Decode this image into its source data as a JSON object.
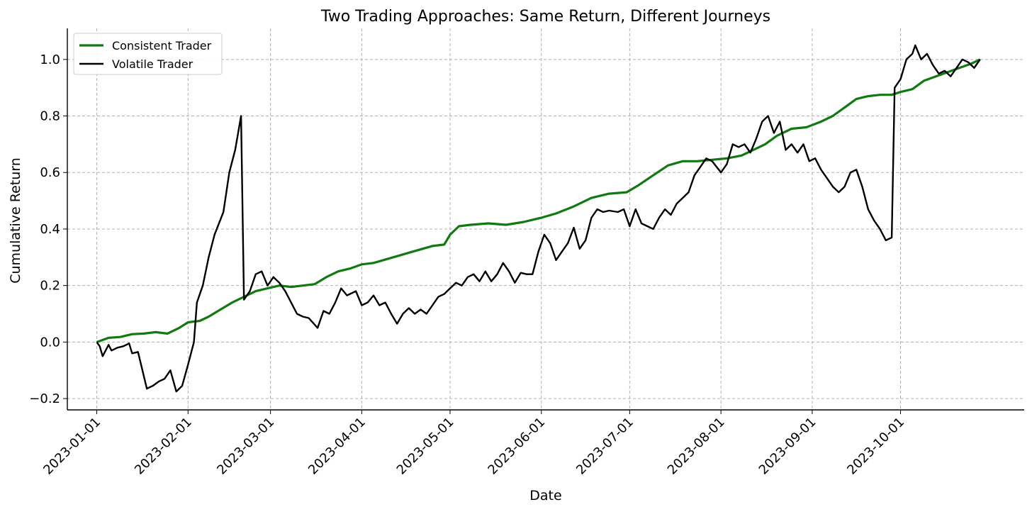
{
  "chart_data": {
    "type": "line",
    "title": "Two Trading Approaches: Same Return, Different Journeys",
    "xlabel": "Date",
    "ylabel": "Cumulative Return",
    "x_ticks": [
      "2023-01-01",
      "2023-02-01",
      "2023-03-01",
      "2023-04-01",
      "2023-05-01",
      "2023-06-01",
      "2023-07-01",
      "2023-08-01",
      "2023-09-01",
      "2023-10-01"
    ],
    "y_ticks": [
      -0.2,
      0.0,
      0.2,
      0.4,
      0.6,
      0.8,
      1.0
    ],
    "y_tick_labels": [
      "−0.2",
      "0.0",
      "0.2",
      "0.4",
      "0.6",
      "0.8",
      "1.0"
    ],
    "ylim": [
      -0.24,
      1.11
    ],
    "xlim": [
      "2022-12-22",
      "2023-11-12"
    ],
    "grid": true,
    "legend_position": "top-left",
    "series": [
      {
        "name": "Consistent Trader",
        "color": "#107a10",
        "points": [
          [
            "2023-01-01",
            0.0
          ],
          [
            "2023-01-05",
            0.015
          ],
          [
            "2023-01-09",
            0.018
          ],
          [
            "2023-01-13",
            0.028
          ],
          [
            "2023-01-17",
            0.03
          ],
          [
            "2023-01-21",
            0.035
          ],
          [
            "2023-01-25",
            0.03
          ],
          [
            "2023-01-29",
            0.05
          ],
          [
            "2023-02-01",
            0.07
          ],
          [
            "2023-02-05",
            0.075
          ],
          [
            "2023-02-08",
            0.09
          ],
          [
            "2023-02-12",
            0.115
          ],
          [
            "2023-02-16",
            0.14
          ],
          [
            "2023-02-20",
            0.16
          ],
          [
            "2023-02-24",
            0.18
          ],
          [
            "2023-02-28",
            0.19
          ],
          [
            "2023-03-04",
            0.2
          ],
          [
            "2023-03-08",
            0.195
          ],
          [
            "2023-03-12",
            0.2
          ],
          [
            "2023-03-16",
            0.205
          ],
          [
            "2023-03-20",
            0.23
          ],
          [
            "2023-03-24",
            0.25
          ],
          [
            "2023-03-28",
            0.26
          ],
          [
            "2023-04-01",
            0.275
          ],
          [
            "2023-04-05",
            0.28
          ],
          [
            "2023-04-10",
            0.295
          ],
          [
            "2023-04-15",
            0.31
          ],
          [
            "2023-04-20",
            0.325
          ],
          [
            "2023-04-25",
            0.34
          ],
          [
            "2023-04-29",
            0.345
          ],
          [
            "2023-05-01",
            0.38
          ],
          [
            "2023-05-04",
            0.41
          ],
          [
            "2023-05-08",
            0.415
          ],
          [
            "2023-05-14",
            0.42
          ],
          [
            "2023-05-20",
            0.415
          ],
          [
            "2023-05-26",
            0.425
          ],
          [
            "2023-06-01",
            0.44
          ],
          [
            "2023-06-06",
            0.455
          ],
          [
            "2023-06-12",
            0.48
          ],
          [
            "2023-06-18",
            0.51
          ],
          [
            "2023-06-24",
            0.525
          ],
          [
            "2023-06-30",
            0.53
          ],
          [
            "2023-07-04",
            0.555
          ],
          [
            "2023-07-09",
            0.59
          ],
          [
            "2023-07-14",
            0.625
          ],
          [
            "2023-07-19",
            0.64
          ],
          [
            "2023-07-24",
            0.64
          ],
          [
            "2023-07-29",
            0.645
          ],
          [
            "2023-08-03",
            0.65
          ],
          [
            "2023-08-08",
            0.66
          ],
          [
            "2023-08-12",
            0.68
          ],
          [
            "2023-08-16",
            0.7
          ],
          [
            "2023-08-20",
            0.73
          ],
          [
            "2023-08-25",
            0.755
          ],
          [
            "2023-08-30",
            0.76
          ],
          [
            "2023-09-04",
            0.78
          ],
          [
            "2023-09-08",
            0.8
          ],
          [
            "2023-09-12",
            0.83
          ],
          [
            "2023-09-16",
            0.86
          ],
          [
            "2023-09-20",
            0.87
          ],
          [
            "2023-09-24",
            0.875
          ],
          [
            "2023-09-28",
            0.875
          ],
          [
            "2023-10-01",
            0.885
          ],
          [
            "2023-10-05",
            0.895
          ],
          [
            "2023-10-09",
            0.925
          ],
          [
            "2023-10-13",
            0.94
          ],
          [
            "2023-10-17",
            0.955
          ],
          [
            "2023-10-21",
            0.97
          ],
          [
            "2023-10-25",
            0.985
          ],
          [
            "2023-10-28",
            1.0
          ]
        ]
      },
      {
        "name": "Volatile Trader",
        "color": "#000000",
        "points": [
          [
            "2023-01-01",
            0.0
          ],
          [
            "2023-01-02",
            -0.015
          ],
          [
            "2023-01-03",
            -0.05
          ],
          [
            "2023-01-05",
            -0.01
          ],
          [
            "2023-01-06",
            -0.03
          ],
          [
            "2023-01-08",
            -0.02
          ],
          [
            "2023-01-10",
            -0.015
          ],
          [
            "2023-01-12",
            -0.005
          ],
          [
            "2023-01-13",
            -0.04
          ],
          [
            "2023-01-15",
            -0.035
          ],
          [
            "2023-01-18",
            -0.165
          ],
          [
            "2023-01-20",
            -0.155
          ],
          [
            "2023-01-22",
            -0.14
          ],
          [
            "2023-01-24",
            -0.13
          ],
          [
            "2023-01-26",
            -0.1
          ],
          [
            "2023-01-28",
            -0.175
          ],
          [
            "2023-01-30",
            -0.155
          ],
          [
            "2023-02-01",
            -0.08
          ],
          [
            "2023-02-03",
            0.0
          ],
          [
            "2023-02-04",
            0.14
          ],
          [
            "2023-02-06",
            0.2
          ],
          [
            "2023-02-08",
            0.3
          ],
          [
            "2023-02-10",
            0.38
          ],
          [
            "2023-02-13",
            0.46
          ],
          [
            "2023-02-15",
            0.6
          ],
          [
            "2023-02-17",
            0.68
          ],
          [
            "2023-02-19",
            0.8
          ],
          [
            "2023-02-20",
            0.15
          ],
          [
            "2023-02-22",
            0.18
          ],
          [
            "2023-02-24",
            0.24
          ],
          [
            "2023-02-26",
            0.25
          ],
          [
            "2023-02-28",
            0.2
          ],
          [
            "2023-03-02",
            0.23
          ],
          [
            "2023-03-04",
            0.21
          ],
          [
            "2023-03-06",
            0.18
          ],
          [
            "2023-03-08",
            0.14
          ],
          [
            "2023-03-10",
            0.1
          ],
          [
            "2023-03-12",
            0.09
          ],
          [
            "2023-03-14",
            0.085
          ],
          [
            "2023-03-17",
            0.05
          ],
          [
            "2023-03-19",
            0.11
          ],
          [
            "2023-03-21",
            0.1
          ],
          [
            "2023-03-23",
            0.14
          ],
          [
            "2023-03-25",
            0.19
          ],
          [
            "2023-03-27",
            0.165
          ],
          [
            "2023-03-30",
            0.18
          ],
          [
            "2023-04-01",
            0.13
          ],
          [
            "2023-04-03",
            0.14
          ],
          [
            "2023-04-05",
            0.165
          ],
          [
            "2023-04-07",
            0.13
          ],
          [
            "2023-04-09",
            0.14
          ],
          [
            "2023-04-11",
            0.1
          ],
          [
            "2023-04-13",
            0.065
          ],
          [
            "2023-04-15",
            0.1
          ],
          [
            "2023-04-17",
            0.12
          ],
          [
            "2023-04-19",
            0.1
          ],
          [
            "2023-04-21",
            0.115
          ],
          [
            "2023-04-23",
            0.1
          ],
          [
            "2023-04-25",
            0.13
          ],
          [
            "2023-04-27",
            0.16
          ],
          [
            "2023-04-29",
            0.17
          ],
          [
            "2023-05-01",
            0.19
          ],
          [
            "2023-05-03",
            0.21
          ],
          [
            "2023-05-05",
            0.2
          ],
          [
            "2023-05-07",
            0.23
          ],
          [
            "2023-05-09",
            0.24
          ],
          [
            "2023-05-11",
            0.215
          ],
          [
            "2023-05-13",
            0.25
          ],
          [
            "2023-05-15",
            0.215
          ],
          [
            "2023-05-17",
            0.24
          ],
          [
            "2023-05-19",
            0.28
          ],
          [
            "2023-05-21",
            0.25
          ],
          [
            "2023-05-23",
            0.21
          ],
          [
            "2023-05-25",
            0.245
          ],
          [
            "2023-05-27",
            0.24
          ],
          [
            "2023-05-29",
            0.24
          ],
          [
            "2023-05-31",
            0.32
          ],
          [
            "2023-06-02",
            0.38
          ],
          [
            "2023-06-04",
            0.35
          ],
          [
            "2023-06-06",
            0.29
          ],
          [
            "2023-06-08",
            0.32
          ],
          [
            "2023-06-10",
            0.35
          ],
          [
            "2023-06-12",
            0.405
          ],
          [
            "2023-06-14",
            0.33
          ],
          [
            "2023-06-16",
            0.36
          ],
          [
            "2023-06-18",
            0.44
          ],
          [
            "2023-06-20",
            0.47
          ],
          [
            "2023-06-22",
            0.46
          ],
          [
            "2023-06-24",
            0.465
          ],
          [
            "2023-06-27",
            0.46
          ],
          [
            "2023-06-29",
            0.47
          ],
          [
            "2023-07-01",
            0.41
          ],
          [
            "2023-07-03",
            0.47
          ],
          [
            "2023-07-05",
            0.42
          ],
          [
            "2023-07-07",
            0.41
          ],
          [
            "2023-07-09",
            0.4
          ],
          [
            "2023-07-11",
            0.44
          ],
          [
            "2023-07-13",
            0.47
          ],
          [
            "2023-07-15",
            0.45
          ],
          [
            "2023-07-17",
            0.49
          ],
          [
            "2023-07-19",
            0.51
          ],
          [
            "2023-07-21",
            0.53
          ],
          [
            "2023-07-23",
            0.59
          ],
          [
            "2023-07-25",
            0.62
          ],
          [
            "2023-07-27",
            0.65
          ],
          [
            "2023-07-29",
            0.64
          ],
          [
            "2023-08-01",
            0.6
          ],
          [
            "2023-08-03",
            0.63
          ],
          [
            "2023-08-05",
            0.7
          ],
          [
            "2023-08-07",
            0.69
          ],
          [
            "2023-08-09",
            0.7
          ],
          [
            "2023-08-11",
            0.67
          ],
          [
            "2023-08-13",
            0.72
          ],
          [
            "2023-08-15",
            0.78
          ],
          [
            "2023-08-17",
            0.8
          ],
          [
            "2023-08-19",
            0.74
          ],
          [
            "2023-08-21",
            0.78
          ],
          [
            "2023-08-23",
            0.68
          ],
          [
            "2023-08-25",
            0.7
          ],
          [
            "2023-08-27",
            0.67
          ],
          [
            "2023-08-29",
            0.7
          ],
          [
            "2023-08-31",
            0.64
          ],
          [
            "2023-09-02",
            0.65
          ],
          [
            "2023-09-04",
            0.61
          ],
          [
            "2023-09-06",
            0.58
          ],
          [
            "2023-09-08",
            0.55
          ],
          [
            "2023-09-10",
            0.53
          ],
          [
            "2023-09-12",
            0.55
          ],
          [
            "2023-09-14",
            0.6
          ],
          [
            "2023-09-16",
            0.61
          ],
          [
            "2023-09-18",
            0.55
          ],
          [
            "2023-09-20",
            0.47
          ],
          [
            "2023-09-22",
            0.43
          ],
          [
            "2023-09-24",
            0.4
          ],
          [
            "2023-09-26",
            0.36
          ],
          [
            "2023-09-28",
            0.37
          ],
          [
            "2023-09-29",
            0.9
          ],
          [
            "2023-10-01",
            0.93
          ],
          [
            "2023-10-03",
            1.0
          ],
          [
            "2023-10-05",
            1.02
          ],
          [
            "2023-10-06",
            1.05
          ],
          [
            "2023-10-08",
            1.0
          ],
          [
            "2023-10-10",
            1.02
          ],
          [
            "2023-10-12",
            0.98
          ],
          [
            "2023-10-14",
            0.95
          ],
          [
            "2023-10-16",
            0.96
          ],
          [
            "2023-10-18",
            0.94
          ],
          [
            "2023-10-20",
            0.97
          ],
          [
            "2023-10-22",
            1.0
          ],
          [
            "2023-10-24",
            0.99
          ],
          [
            "2023-10-26",
            0.97
          ],
          [
            "2023-10-28",
            1.0
          ]
        ]
      }
    ]
  }
}
